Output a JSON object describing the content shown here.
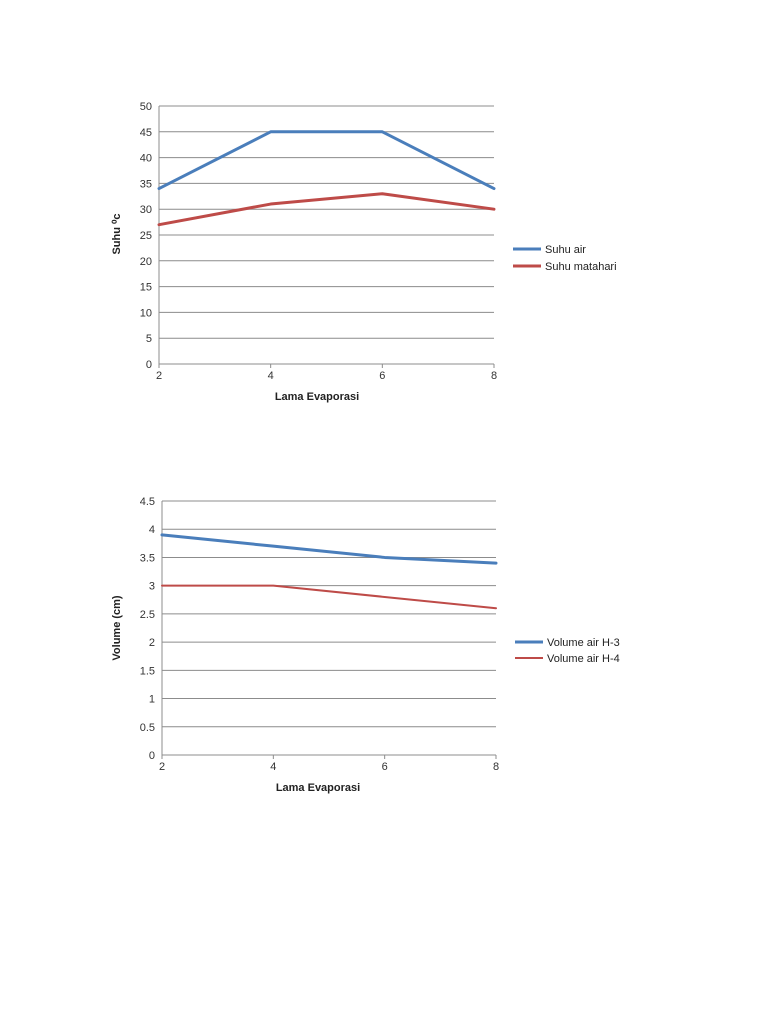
{
  "chart_data": [
    {
      "type": "line",
      "x": [
        2,
        4,
        6,
        8
      ],
      "xlabel": "Lama Evaporasi",
      "ylabel": "Suhu ⁰c",
      "ylim": [
        0,
        50
      ],
      "ystep": 5,
      "y_tick_labels": [
        "0",
        "5",
        "10",
        "15",
        "20",
        "25",
        "30",
        "35",
        "40",
        "45",
        "50"
      ],
      "x_tick_labels": [
        "2",
        "4",
        "6",
        "8"
      ],
      "grid": true,
      "legend_position": "right",
      "series": [
        {
          "name": "Suhu air",
          "values": [
            34,
            45,
            45,
            34
          ],
          "color": "#4a7ebb"
        },
        {
          "name": "Suhu matahari",
          "values": [
            27,
            31,
            33,
            30
          ],
          "color": "#be4b48"
        }
      ]
    },
    {
      "type": "line",
      "x": [
        2,
        4,
        6,
        8
      ],
      "xlabel": "Lama Evaporasi",
      "ylabel": "Volume (cm)",
      "ylim": [
        0,
        4.5
      ],
      "ystep": 0.5,
      "y_tick_labels": [
        "0",
        "0.5",
        "1",
        "1.5",
        "2",
        "2.5",
        "3",
        "3.5",
        "4",
        "4.5"
      ],
      "x_tick_labels": [
        "2",
        "4",
        "6",
        "8"
      ],
      "grid": true,
      "legend_position": "right",
      "series": [
        {
          "name": "Volume air H-3",
          "values": [
            3.9,
            3.7,
            3.5,
            3.4
          ],
          "color": "#4a7ebb"
        },
        {
          "name": "Volume air H-4",
          "values": [
            3.0,
            3.0,
            2.8,
            2.6
          ],
          "color": "#be4b48"
        }
      ]
    }
  ]
}
